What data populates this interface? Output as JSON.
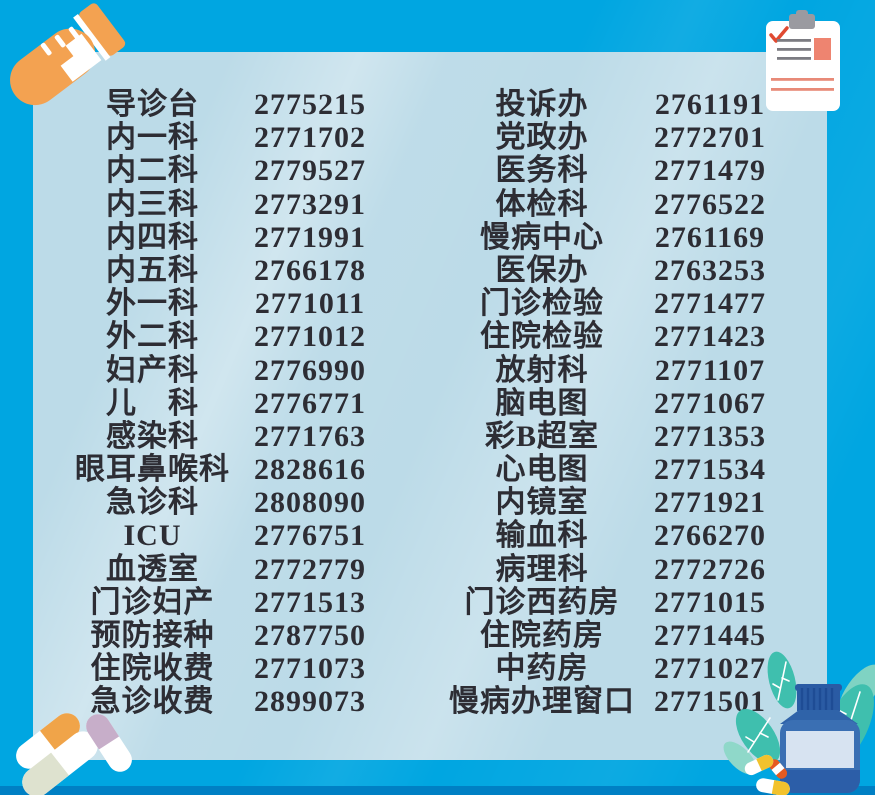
{
  "poster": {
    "kind": "hospital-phone-directory"
  },
  "colors": {
    "bg": "#00a6e1",
    "panel": "#bcdbe8",
    "ink": "#2d2d34",
    "strip": "#0080c4",
    "tube_orange": "#f3a251",
    "clipboard_salmon": "#ee8470",
    "clipboard_red": "#e04a31",
    "clip_gray": "#9a9aa0",
    "bottle_blue": "#3166ab",
    "leaf_teal": "#3fbfae",
    "leaf_light": "#7fd3c3"
  },
  "directory": {
    "left": [
      {
        "name": "导诊台",
        "phone": "2775215"
      },
      {
        "name": "内一科",
        "phone": "2771702"
      },
      {
        "name": "内二科",
        "phone": "2779527"
      },
      {
        "name": "内三科",
        "phone": "2773291"
      },
      {
        "name": "内四科",
        "phone": "2771991"
      },
      {
        "name": "内五科",
        "phone": "2766178"
      },
      {
        "name": "外一科",
        "phone": "2771011"
      },
      {
        "name": "外二科",
        "phone": "2771012"
      },
      {
        "name": "妇产科",
        "phone": "2776990"
      },
      {
        "name": "儿　科",
        "phone": "2776771"
      },
      {
        "name": "感染科",
        "phone": "2771763"
      },
      {
        "name": "眼耳鼻喉科",
        "phone": "2828616"
      },
      {
        "name": "急诊科",
        "phone": "2808090"
      },
      {
        "name": "ICU",
        "phone": "2776751"
      },
      {
        "name": "血透室",
        "phone": "2772779"
      },
      {
        "name": "门诊妇产",
        "phone": "2771513"
      },
      {
        "name": "预防接种",
        "phone": "2787750"
      },
      {
        "name": "住院收费",
        "phone": "2771073"
      },
      {
        "name": "急诊收费",
        "phone": "2899073"
      }
    ],
    "right": [
      {
        "name": "投诉办",
        "phone": "2761191"
      },
      {
        "name": "党政办",
        "phone": "2772701"
      },
      {
        "name": "医务科",
        "phone": "2771479"
      },
      {
        "name": "体检科",
        "phone": "2776522"
      },
      {
        "name": "慢病中心",
        "phone": "2761169"
      },
      {
        "name": "医保办",
        "phone": "2763253"
      },
      {
        "name": "门诊检验",
        "phone": "2771477"
      },
      {
        "name": "住院检验",
        "phone": "2771423"
      },
      {
        "name": "放射科",
        "phone": "2771107"
      },
      {
        "name": "脑电图",
        "phone": "2771067"
      },
      {
        "name": "彩B超室",
        "phone": "2771353"
      },
      {
        "name": "心电图",
        "phone": "2771534"
      },
      {
        "name": "内镜室",
        "phone": "2771921"
      },
      {
        "name": "输血科",
        "phone": "2766270"
      },
      {
        "name": "病理科",
        "phone": "2772726"
      },
      {
        "name": "门诊西药房",
        "phone": "2771015"
      },
      {
        "name": "住院药房",
        "phone": "2771445"
      },
      {
        "name": "中药房",
        "phone": "2771027"
      },
      {
        "name": "慢病办理窗口",
        "phone": "2771501"
      }
    ]
  },
  "decorations": {
    "top_left": "test-tube-icon",
    "top_right": "clipboard-checklist-icon",
    "bottom_left": "capsule-pills-icon",
    "bottom_right": "medicine-bottle-with-leaves-and-pills-icon"
  }
}
